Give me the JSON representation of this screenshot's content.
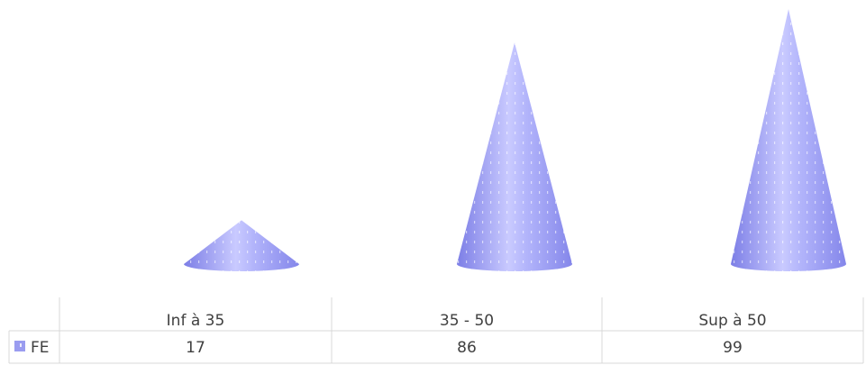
{
  "chart_data": {
    "type": "bar",
    "shape": "cone",
    "title": "",
    "xlabel": "",
    "ylabel": "",
    "categories": [
      "Inf à 35",
      "35 - 50",
      "Sup à 50"
    ],
    "series": [
      {
        "name": "FE",
        "values": [
          17,
          86,
          99
        ],
        "color": "#9a9cf0"
      }
    ],
    "ylim": [
      0,
      105
    ],
    "data_table": true,
    "legend_in_table": true,
    "grid": false
  }
}
